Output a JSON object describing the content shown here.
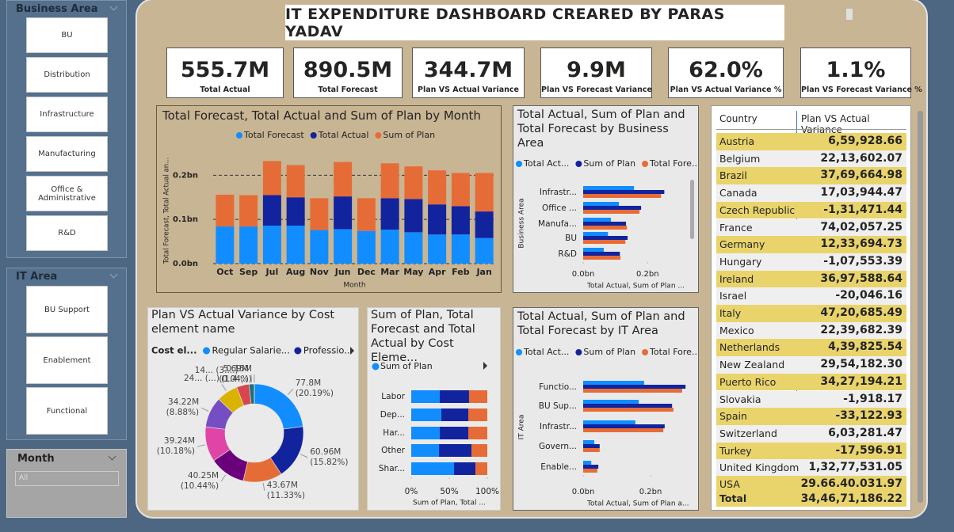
{
  "slicers": [
    {
      "title": "Business Area",
      "items": [
        "BU",
        "Distribution",
        "Infrastructure",
        "Manufacturing",
        "Office & Administrative",
        "R&D"
      ]
    },
    {
      "title": "IT Area",
      "items": [
        "BU Support",
        "Enablement",
        "Functional"
      ]
    },
    {
      "title": "Month",
      "value": "All"
    }
  ],
  "header": {
    "title": "IT EXPENDITURE DASHBOARD CREARED BY PARAS YADAV"
  },
  "kpis": [
    {
      "value": "555.7M",
      "label": "Total Actual"
    },
    {
      "value": "890.5M",
      "label": "Total Forecast"
    },
    {
      "value": "344.7M",
      "label": "Plan VS Actual Variance"
    },
    {
      "value": "9.9M",
      "label": "Plan VS Forecast Variance"
    },
    {
      "value": "62.0%",
      "label": "Plan VS Actual Variance %"
    },
    {
      "value": "1.1%",
      "label": "Plan VS Forecast Variance %"
    }
  ],
  "charts": [
    {
      "type": "bar",
      "stacked": true,
      "title": "Total Forecast, Total Actual and Sum of Plan by Month",
      "categories": [
        "Oct",
        "Sep",
        "Jul",
        "Aug",
        "Nov",
        "Jun",
        "Dec",
        "Mar",
        "May",
        "Apr",
        "Feb",
        "Jan"
      ],
      "series": [
        {
          "name": "Total Forecast",
          "color": "#118dff",
          "values": [
            0.084,
            0.084,
            0.086,
            0.086,
            0.076,
            0.078,
            0.074,
            0.077,
            0.071,
            0.066,
            0.066,
            0.058
          ]
        },
        {
          "name": "Total Actual",
          "color": "#12239e",
          "values": [
            0,
            0,
            0.069,
            0.064,
            0,
            0.074,
            0,
            0.071,
            0.075,
            0.068,
            0.064,
            0.06
          ]
        },
        {
          "name": "Sum of Plan",
          "color": "#e66c37",
          "values": [
            0.072,
            0.071,
            0.077,
            0.073,
            0.072,
            0.078,
            0.074,
            0.079,
            0.074,
            0.077,
            0.075,
            0.087
          ]
        }
      ],
      "ylim": [
        0,
        0.24
      ],
      "yticks": [
        {
          "value": 0,
          "label": "0.0bn"
        },
        {
          "value": 0.1,
          "label": "0.1bn"
        },
        {
          "value": 0.2,
          "label": "0.2bn"
        }
      ],
      "grid": true,
      "ylabel": "Total Forecast, Total Actual an...",
      "xlabel": "Month"
    },
    {
      "type": "hbar",
      "title": "Total Actual, Sum of Plan and Total Forecast by Business Area",
      "categories": [
        "Infrastr...",
        "Office ...",
        "Manufa...",
        "BU",
        "R&D"
      ],
      "series": [
        {
          "name": "Total Act...",
          "color": "#118dff",
          "values": [
            0.158,
            0.111,
            0.086,
            0.077,
            0.064
          ]
        },
        {
          "name": "Sum of Plan",
          "color": "#12239e",
          "values": [
            0.252,
            0.18,
            0.133,
            0.138,
            0.114
          ]
        },
        {
          "name": "Total Fore...",
          "color": "#e66c37",
          "values": [
            0.242,
            0.175,
            0.136,
            0.131,
            0.116
          ]
        }
      ],
      "xlim": [
        0,
        0.32
      ],
      "xticks": [
        {
          "value": 0,
          "label": "0.0bn"
        },
        {
          "value": 0.2,
          "label": "0.2bn"
        }
      ],
      "ylabel": "Business Area",
      "xlabel": "Total Actual, Sum of Plan ..."
    },
    {
      "type": "donut",
      "title": "Plan VS Actual Variance by Cost element name",
      "legend_title": "Cost el...",
      "categories": [
        "Regular Salarie...",
        "Professio...",
        null,
        null,
        null,
        null,
        null,
        null,
        null,
        null
      ],
      "values": [
        77.8,
        60.96,
        43.67,
        40.25,
        39.24,
        34.22,
        24,
        14,
        5.69,
        0.15
      ],
      "value_labels": [
        "77.8M (20.19%)",
        "60.96M (15.82%)",
        "43.67M (11.33%)",
        "40.25M (10.44%)",
        "39.24M (10.18%)",
        "34.22M (8.88%)",
        "24... (...)",
        "14... (3....)",
        "5.69M (1.4...)",
        "0.15M (0.04%)"
      ],
      "colors": [
        "#118dff",
        "#12239e",
        "#e66c37",
        "#6b007b",
        "#e044a7",
        "#744ec2",
        "#d9b300",
        "#d64550",
        "#197278",
        "#1aab40"
      ]
    },
    {
      "type": "stacked100",
      "title": "Sum of Plan, Total Forecast and Total Actual by Cost Eleme...",
      "categories": [
        "Labor",
        "Dep...",
        "Har...",
        "Other",
        "Shar..."
      ],
      "series": [
        {
          "name": "Sum of Plan",
          "color": "#118dff",
          "values": [
            37.5,
            39.6,
            37.5,
            36.5,
            56.3
          ]
        },
        {
          "color": "#12239e",
          "values": [
            38.5,
            35.4,
            37.5,
            42.7,
            28.1
          ]
        },
        {
          "color": "#e66c37",
          "values": [
            24,
            25,
            25,
            20.8,
            15.6
          ]
        }
      ],
      "xlim": [
        0,
        100
      ],
      "xticks": [
        {
          "value": 0,
          "label": "0%"
        },
        {
          "value": 50,
          "label": "50%"
        },
        {
          "value": 100,
          "label": "100%"
        }
      ],
      "xlabel": "Sum of Plan, Total ..."
    },
    {
      "type": "hbar",
      "title": "Total Actual, Sum of Plan and Total Forecast by IT Area",
      "categories": [
        "Functio...",
        "BU Sup...",
        "Infrastr...",
        "Govern...",
        "Enable..."
      ],
      "series": [
        {
          "name": "Total Act...",
          "color": "#118dff",
          "values": [
            0.181,
            0.165,
            0.155,
            0.033,
            0.024
          ]
        },
        {
          "name": "Sum of Plan",
          "color": "#12239e",
          "values": [
            0.304,
            0.264,
            0.242,
            0.049,
            0.045
          ]
        },
        {
          "name": "Total Fore...",
          "color": "#e66c37",
          "values": [
            0.294,
            0.268,
            0.238,
            0.049,
            0.042
          ]
        }
      ],
      "xlim": [
        0,
        0.32
      ],
      "xticks": [
        {
          "value": 0,
          "label": "0.0bn"
        },
        {
          "value": 0.2,
          "label": "0.2bn"
        }
      ],
      "ylabel": "IT Area",
      "xlabel": "Total Actual, Sum of Plan a..."
    }
  ],
  "table": {
    "columns": [
      "Country",
      "Plan VS Actual Variance"
    ],
    "rows": [
      [
        "Austria",
        "6,59,928.66"
      ],
      [
        "Belgium",
        "22,13,602.07"
      ],
      [
        "Brazil",
        "37,69,664.98"
      ],
      [
        "Canada",
        "17,03,944.47"
      ],
      [
        "Czech Republic",
        "-1,31,471.44"
      ],
      [
        "France",
        "74,02,057.25"
      ],
      [
        "Germany",
        "12,33,694.73"
      ],
      [
        "Hungary",
        "-1,07,553.39"
      ],
      [
        "Ireland",
        "36,97,588.64"
      ],
      [
        "Israel",
        "-20,046.16"
      ],
      [
        "Italy",
        "47,20,685.49"
      ],
      [
        "Mexico",
        "22,39,682.39"
      ],
      [
        "Netherlands",
        "4,39,825.54"
      ],
      [
        "New Zealand",
        "29,54,182.30"
      ],
      [
        "Puerto Rico",
        "34,27,194.21"
      ],
      [
        "Slovakia",
        "-1,918.17"
      ],
      [
        "Spain",
        "-33,122.93"
      ],
      [
        "Switzerland",
        "6,03,281.47"
      ],
      [
        "Turkey",
        "-17,596.91"
      ],
      [
        "United Kingdom",
        "1,32,77,531.05"
      ],
      [
        "USA",
        "29.66.40.031.97"
      ]
    ],
    "total": [
      "Total",
      "34,46,71,186.22"
    ]
  }
}
